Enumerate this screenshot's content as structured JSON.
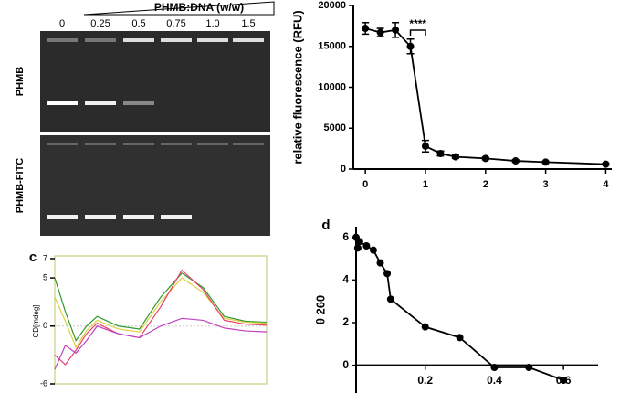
{
  "gel": {
    "header": "PHMB:DNA (w/w)",
    "lanes": [
      "0",
      "0.25",
      "0.5",
      "0.75",
      "1.0",
      "1.5"
    ],
    "rows": [
      "PHMB",
      "PHMB-FITC"
    ]
  },
  "panel_labels": {
    "c": "c",
    "d": "d"
  },
  "chart_data": [
    {
      "type": "line",
      "ylabel": "relative fluorescence (RFU)",
      "annotation": "****",
      "x": [
        0,
        0.25,
        0.5,
        0.75,
        1,
        1.25,
        1.5,
        2,
        2.5,
        3,
        4
      ],
      "series": [
        {
          "color": "#000000",
          "values": [
            17200,
            16700,
            17000,
            15000,
            2800,
            1900,
            1500,
            1300,
            1000,
            850,
            600
          ],
          "errors": [
            700,
            500,
            900,
            900,
            700,
            300,
            200,
            150,
            150,
            100,
            100
          ]
        }
      ],
      "xlim": [
        -0.2,
        4.1
      ],
      "xticks": [
        0,
        1,
        2,
        3,
        4
      ],
      "ylim": [
        0,
        20000
      ],
      "yticks": [
        0,
        5000,
        10000,
        15000,
        20000
      ]
    },
    {
      "type": "line",
      "ylabel": "CD[mdeg]",
      "x": [
        200,
        205,
        210,
        215,
        220,
        230,
        240,
        250,
        260,
        270,
        280,
        290,
        300
      ],
      "series": [
        {
          "color": "#2e9a2e",
          "values": [
            5,
            1.5,
            -1.5,
            0,
            1,
            0,
            -0.3,
            3,
            5.5,
            4,
            1,
            0.5,
            0.4
          ]
        },
        {
          "color": "#e0d040",
          "values": [
            3,
            0.5,
            -2.2,
            -0.5,
            0.6,
            -0.3,
            -0.6,
            2.5,
            5,
            3.5,
            0.8,
            0.4,
            0.3
          ]
        },
        {
          "color": "#e8406a",
          "values": [
            -3,
            -4,
            -2.5,
            -0.8,
            0.3,
            -0.8,
            -1.2,
            2,
            5.8,
            3.8,
            0.6,
            0.2,
            0.1
          ]
        },
        {
          "color": "#c040c0",
          "values": [
            -4.5,
            -2,
            -2.8,
            -1.5,
            0,
            -0.8,
            -1.2,
            0,
            0.8,
            0.6,
            -0.2,
            -0.5,
            -0.6
          ]
        }
      ],
      "xlim": [
        200,
        300
      ],
      "ylim": [
        -6,
        7
      ],
      "yticks": [
        7,
        5,
        0,
        -6
      ]
    },
    {
      "type": "line",
      "ylabel": "θ 260",
      "x": [
        0,
        0.005,
        0.01,
        0.03,
        0.05,
        0.07,
        0.09,
        0.1,
        0.2,
        0.3,
        0.4,
        0.5,
        0.6
      ],
      "series": [
        {
          "color": "#000000",
          "values": [
            6.0,
            5.5,
            5.8,
            5.6,
            5.4,
            4.8,
            4.3,
            3.1,
            1.8,
            1.3,
            -0.1,
            -0.1,
            -0.7
          ]
        }
      ],
      "xlim": [
        0,
        0.7
      ],
      "xticks": [
        0.2,
        0.4,
        0.6
      ],
      "ylim": [
        -1.3,
        6.5
      ],
      "yticks": [
        0,
        2,
        4,
        6
      ]
    }
  ]
}
